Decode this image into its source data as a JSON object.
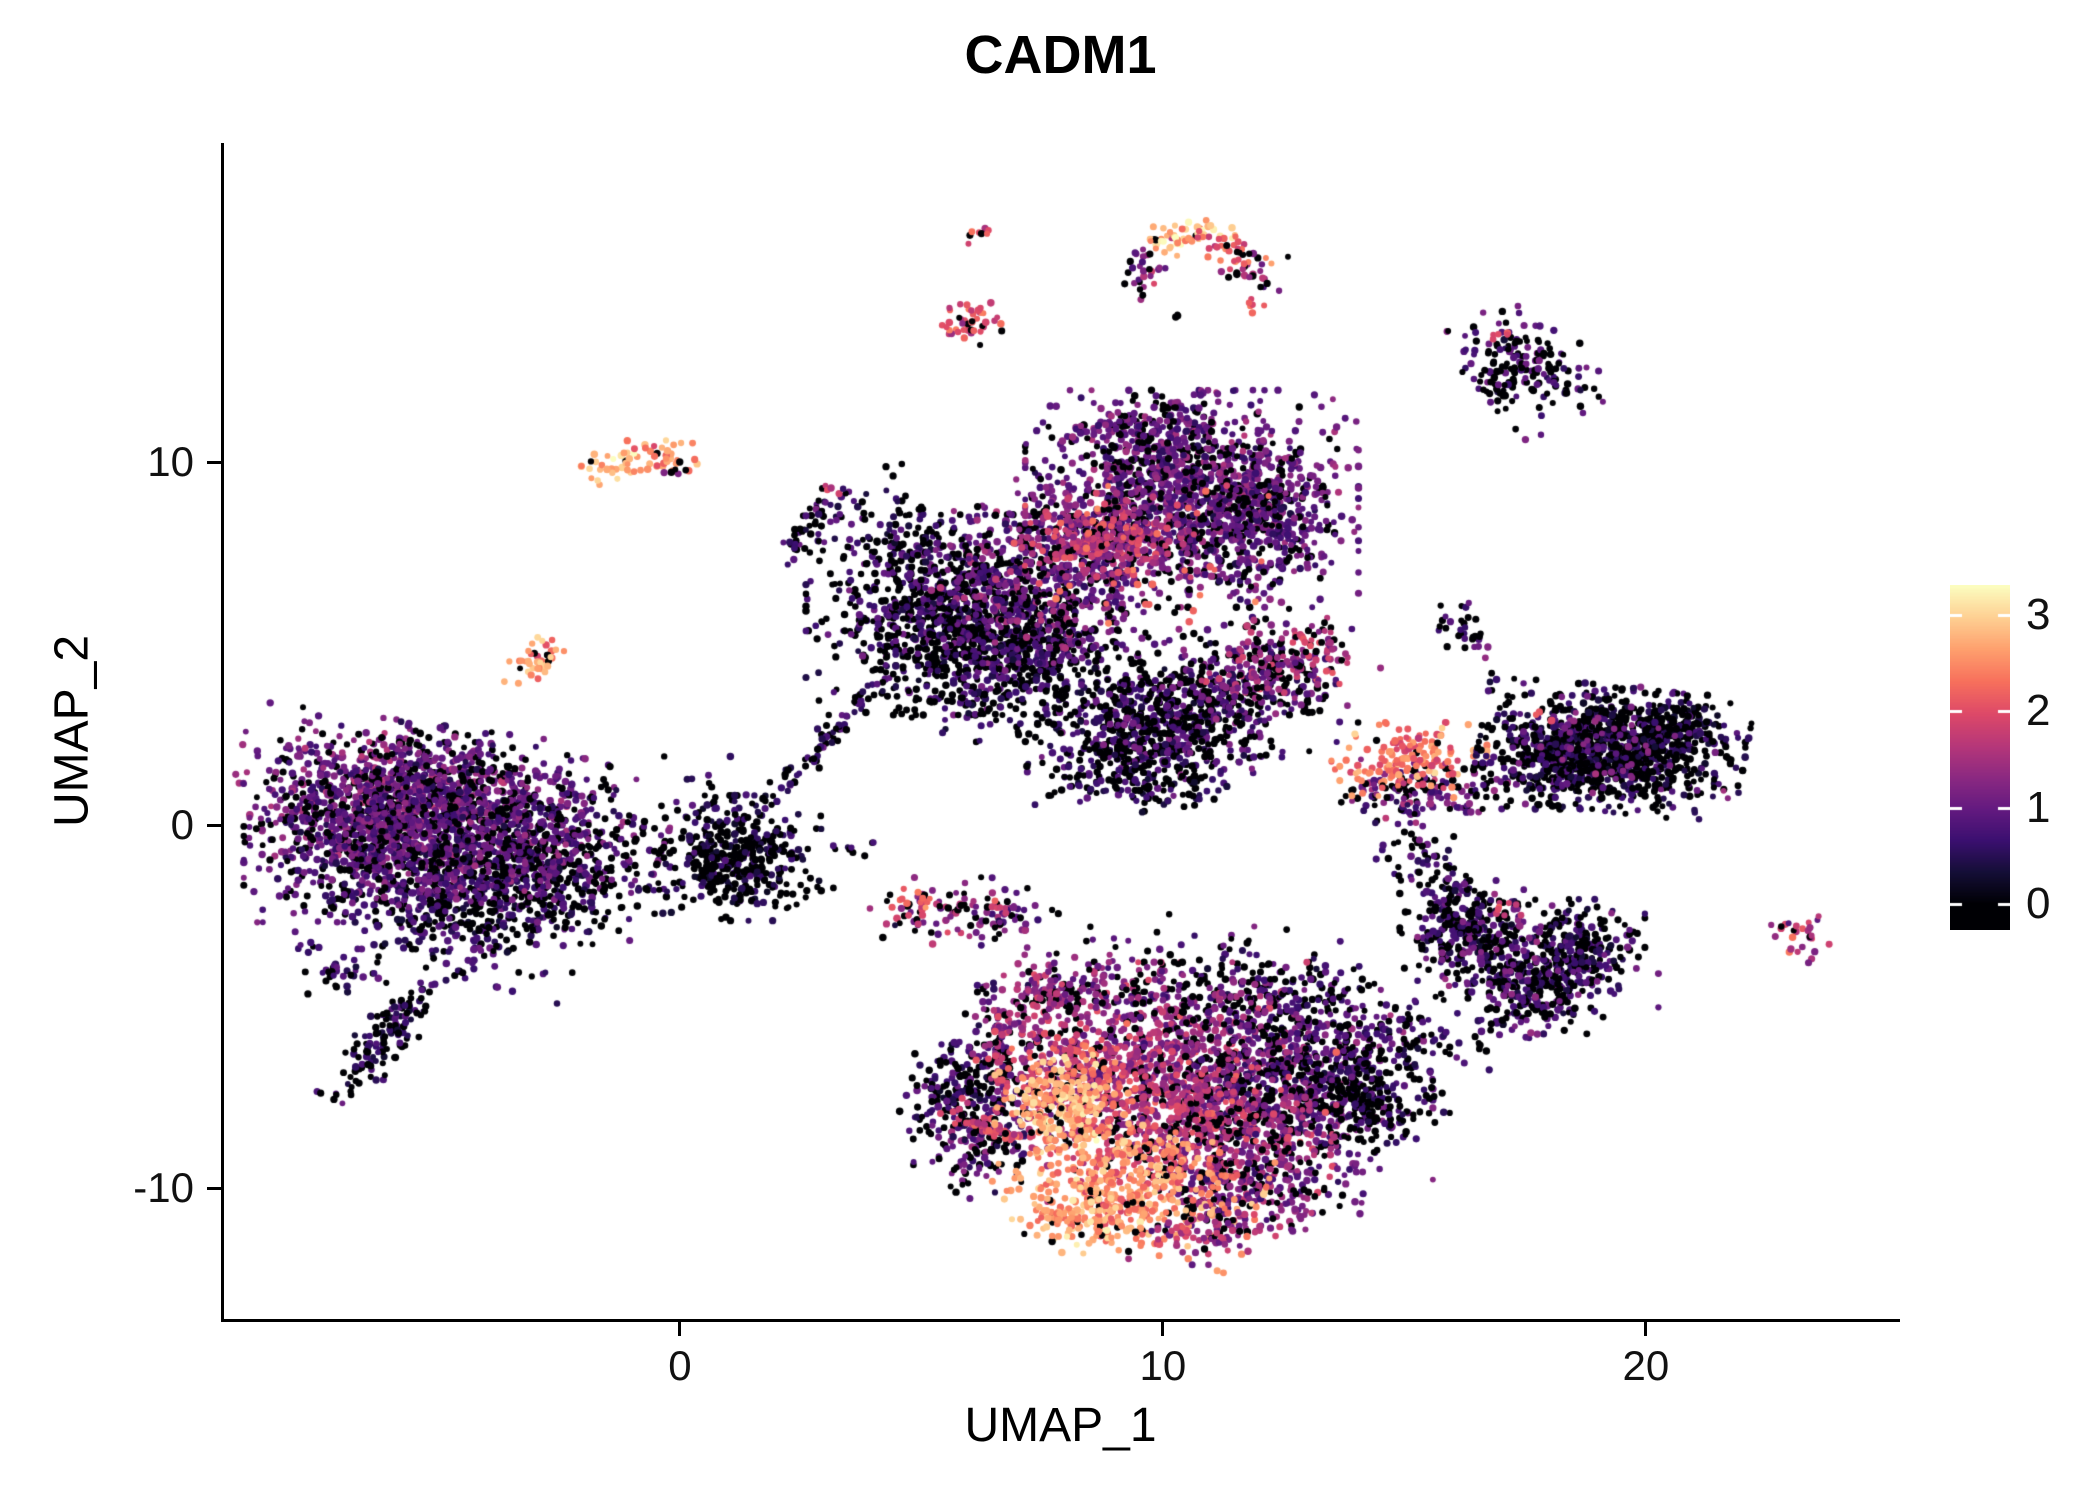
{
  "chart_data": {
    "type": "scatter",
    "title": "CADM1",
    "xlabel": "UMAP_1",
    "ylabel": "UMAP_2",
    "xlim": [
      -9.44,
      25.2
    ],
    "ylim": [
      -13.6,
      18.8
    ],
    "x_ticks": [
      0,
      10,
      20
    ],
    "y_ticks": [
      -10,
      0,
      10
    ],
    "grid": false,
    "background": "#ffffff",
    "point_radius_px": 3.3,
    "legend": {
      "position": "right",
      "type": "colorbar",
      "ticks": [
        0,
        1,
        2,
        3
      ],
      "bar_vmin": -0.26,
      "bar_vmax": 3.31,
      "value_max": 3.3
    },
    "colorscale": {
      "name": "magma",
      "stops": [
        [
          0.0,
          "#000004"
        ],
        [
          0.1,
          "#140e36"
        ],
        [
          0.2,
          "#3b0f70"
        ],
        [
          0.3,
          "#641a80"
        ],
        [
          0.4,
          "#8c2981"
        ],
        [
          0.5,
          "#b73779"
        ],
        [
          0.6,
          "#de4968"
        ],
        [
          0.7,
          "#f7705c"
        ],
        [
          0.8,
          "#fe9f6d"
        ],
        [
          0.9,
          "#fecf92"
        ],
        [
          1.0,
          "#fcfdbf"
        ]
      ]
    },
    "cluster_fields": [
      "cx",
      "cy",
      "sigma_x",
      "sigma_y",
      "rot_deg",
      "n",
      "zero_frac",
      "vmin",
      "vmax"
    ],
    "clusters": [
      [
        -4.6,
        -2.2,
        1.3,
        0.8,
        -20,
        450,
        0.45,
        0.2,
        1.2
      ],
      [
        -3.0,
        -1.2,
        0.9,
        0.8,
        0,
        300,
        0.5,
        0.2,
        1.2
      ],
      [
        -5.8,
        0.8,
        1.5,
        0.9,
        -10,
        900,
        0.25,
        0.4,
        1.8
      ],
      [
        -4.0,
        0.0,
        1.6,
        1.0,
        -15,
        900,
        0.3,
        0.3,
        1.6
      ],
      [
        -6.5,
        -0.6,
        1.1,
        0.9,
        0,
        500,
        0.3,
        0.3,
        1.5
      ],
      [
        -6.0,
        -5.7,
        0.95,
        0.25,
        58,
        140,
        0.55,
        0.2,
        1.1
      ],
      [
        -6.9,
        -4.1,
        0.4,
        0.3,
        0,
        35,
        0.5,
        0.2,
        1.2
      ],
      [
        -7.6,
        -3.4,
        0.15,
        0.1,
        0,
        6,
        0.5,
        0.3,
        1.0
      ],
      [
        -0.9,
        -1.3,
        0.5,
        0.4,
        0,
        25,
        0.5,
        0.3,
        1.2
      ],
      [
        -2.9,
        4.6,
        0.22,
        0.4,
        -30,
        40,
        0.08,
        1.8,
        3.3
      ],
      [
        -1.35,
        9.85,
        0.3,
        0.22,
        0,
        30,
        0.05,
        2.3,
        3.4
      ],
      [
        -0.45,
        10.2,
        0.35,
        0.25,
        0,
        35,
        0.1,
        1.8,
        3.2
      ],
      [
        -0.15,
        9.8,
        0.2,
        0.15,
        0,
        6,
        0.7,
        0.5,
        1.5
      ],
      [
        2.65,
        8.15,
        0.55,
        0.15,
        65,
        45,
        0.5,
        0.3,
        1.3
      ],
      [
        3.05,
        9.25,
        0.12,
        0.1,
        0,
        5,
        0.1,
        1.5,
        2.2
      ],
      [
        1.2,
        -0.9,
        0.75,
        0.75,
        0,
        380,
        0.72,
        0.15,
        0.9
      ],
      [
        0.9,
        -0.4,
        1.2,
        1.0,
        0,
        60,
        0.6,
        0.2,
        1.0
      ],
      [
        3.15,
        2.5,
        1.0,
        0.12,
        57,
        70,
        0.5,
        0.2,
        1.2
      ],
      [
        3.4,
        -0.6,
        0.3,
        0.25,
        0,
        8,
        0.6,
        0.3,
        1.0
      ],
      [
        2.2,
        -2.2,
        0.2,
        0.15,
        0,
        5,
        0.5,
        0.3,
        1.0
      ],
      [
        5.6,
        5.8,
        1.3,
        1.2,
        0,
        800,
        0.55,
        0.2,
        1.2
      ],
      [
        7.0,
        4.9,
        1.1,
        0.8,
        0,
        450,
        0.5,
        0.2,
        1.3
      ],
      [
        4.6,
        7.8,
        0.5,
        0.9,
        20,
        120,
        0.5,
        0.2,
        1.2
      ],
      [
        6.3,
        3.4,
        1.5,
        0.5,
        0,
        100,
        0.6,
        0.2,
        1.0
      ],
      [
        7.8,
        7.0,
        1.2,
        1.1,
        0,
        600,
        0.3,
        0.4,
        1.8
      ],
      [
        10.6,
        9.0,
        1.5,
        1.3,
        0,
        1300,
        0.22,
        0.4,
        1.7
      ],
      [
        12.0,
        8.3,
        0.7,
        0.9,
        0,
        250,
        0.3,
        0.3,
        1.5
      ],
      [
        9.6,
        10.8,
        0.8,
        0.5,
        0,
        150,
        0.3,
        0.4,
        1.6
      ],
      [
        8.8,
        8.0,
        0.8,
        0.5,
        0,
        250,
        0.12,
        1.0,
        2.4
      ],
      [
        9.5,
        7.5,
        1.5,
        1.2,
        0,
        40,
        0.0,
        1.8,
        2.6
      ],
      [
        5.95,
        13.9,
        0.35,
        0.3,
        0,
        45,
        0.15,
        1.2,
        2.6
      ],
      [
        6.2,
        16.3,
        0.18,
        0.12,
        0,
        8,
        0.2,
        1.5,
        2.5
      ],
      [
        9.6,
        15.3,
        0.25,
        0.45,
        -20,
        30,
        0.3,
        0.5,
        2.0
      ],
      [
        11.9,
        15.2,
        0.3,
        0.25,
        0,
        25,
        0.4,
        0.5,
        2.0
      ],
      [
        11.9,
        14.35,
        0.15,
        0.1,
        0,
        6,
        0.0,
        1.8,
        2.4
      ],
      [
        10.3,
        13.95,
        0.1,
        0.1,
        0,
        4,
        0.7,
        0.3,
        1.0
      ],
      [
        10.4,
        16.2,
        0.55,
        0.2,
        15,
        45,
        0.05,
        2.2,
        3.4
      ],
      [
        11.3,
        15.9,
        0.45,
        0.18,
        -25,
        35,
        0.1,
        1.5,
        2.8
      ],
      [
        17.6,
        12.7,
        0.55,
        0.75,
        35,
        160,
        0.5,
        0.3,
        1.4
      ],
      [
        16.9,
        12.1,
        0.2,
        0.3,
        0,
        25,
        0.55,
        0.3,
        1.2
      ],
      [
        17.0,
        13.5,
        0.15,
        0.1,
        0,
        5,
        0.0,
        1.8,
        2.2
      ],
      [
        15.2,
        -0.6,
        0.5,
        0.45,
        0,
        30,
        0.6,
        0.3,
        1.2
      ],
      [
        15.3,
        0.9,
        0.8,
        0.4,
        0,
        140,
        0.35,
        0.4,
        1.8
      ],
      [
        15.1,
        1.8,
        0.7,
        0.45,
        0,
        160,
        0.1,
        1.5,
        3.1
      ],
      [
        19.3,
        2.1,
        1.2,
        0.75,
        -8,
        900,
        0.62,
        0.15,
        1.0
      ],
      [
        18.0,
        1.6,
        0.6,
        0.5,
        0,
        200,
        0.6,
        0.2,
        1.1
      ],
      [
        20.6,
        2.6,
        0.5,
        0.45,
        0,
        150,
        0.6,
        0.2,
        1.0
      ],
      [
        19.3,
        2.2,
        1.1,
        0.7,
        0,
        60,
        0.0,
        0.8,
        1.6
      ],
      [
        17.9,
        3.0,
        0.12,
        0.1,
        0,
        4,
        0.0,
        1.8,
        2.2
      ],
      [
        16.1,
        5.6,
        0.25,
        0.4,
        0,
        30,
        0.55,
        0.3,
        1.2
      ],
      [
        16.6,
        4.8,
        0.1,
        0.08,
        0,
        3,
        0.0,
        1.0,
        1.5
      ],
      [
        5.2,
        -2.35,
        0.55,
        0.4,
        0,
        70,
        0.35,
        0.3,
        2.2
      ],
      [
        5.0,
        -2.2,
        0.3,
        0.2,
        0,
        12,
        0.0,
        1.8,
        2.8
      ],
      [
        6.8,
        -2.5,
        0.45,
        0.35,
        0,
        55,
        0.4,
        0.3,
        1.8
      ],
      [
        6.6,
        -2.2,
        0.12,
        0.1,
        0,
        5,
        0.0,
        1.6,
        2.2
      ],
      [
        7.6,
        -4.6,
        0.25,
        0.18,
        0,
        14,
        0.6,
        0.2,
        0.9
      ],
      [
        6.3,
        -4.4,
        0.15,
        0.12,
        0,
        6,
        0.5,
        0.3,
        1.0
      ],
      [
        9.4,
        2.2,
        1.0,
        0.8,
        10,
        420,
        0.55,
        0.2,
        1.2
      ],
      [
        10.9,
        3.3,
        1.2,
        0.85,
        20,
        500,
        0.5,
        0.2,
        1.4
      ],
      [
        9.9,
        1.1,
        0.8,
        0.3,
        0,
        60,
        0.6,
        0.2,
        1.0
      ],
      [
        12.4,
        4.5,
        0.8,
        0.55,
        25,
        220,
        0.25,
        0.6,
        2.2
      ],
      [
        12.9,
        5.1,
        0.15,
        0.1,
        0,
        6,
        0.0,
        1.5,
        2.2
      ],
      [
        5.7,
        -7.3,
        0.5,
        0.55,
        0,
        130,
        0.55,
        0.2,
        1.2
      ],
      [
        6.6,
        -6.7,
        0.4,
        0.8,
        0,
        100,
        0.5,
        0.3,
        1.3
      ],
      [
        6.2,
        -8.8,
        0.55,
        0.6,
        -30,
        150,
        0.4,
        0.3,
        1.6
      ],
      [
        12.3,
        -4.7,
        1.0,
        0.5,
        0,
        150,
        0.5,
        0.2,
        1.2
      ],
      [
        10.5,
        -3.6,
        1.5,
        0.5,
        0,
        50,
        0.5,
        0.3,
        1.5
      ],
      [
        9.8,
        -6.3,
        1.4,
        1.1,
        0,
        700,
        0.18,
        0.7,
        2.2
      ],
      [
        12.6,
        -7.0,
        1.3,
        1.2,
        0,
        700,
        0.3,
        0.4,
        1.6
      ],
      [
        14.1,
        -7.3,
        0.8,
        0.8,
        0,
        300,
        0.55,
        0.2,
        1.1
      ],
      [
        10.6,
        -8.3,
        1.3,
        0.9,
        0,
        600,
        0.2,
        0.9,
        2.3
      ],
      [
        12.0,
        -9.9,
        0.9,
        0.6,
        10,
        250,
        0.3,
        0.5,
        1.8
      ],
      [
        8.8,
        -4.6,
        1.0,
        0.45,
        0,
        150,
        0.3,
        0.5,
        2.0
      ],
      [
        7.3,
        -5.3,
        0.5,
        0.8,
        -15,
        130,
        0.25,
        0.8,
        2.2
      ],
      [
        6.4,
        -8.3,
        0.5,
        0.2,
        -35,
        60,
        0.1,
        1.3,
        2.4
      ],
      [
        8.1,
        -7.3,
        0.9,
        0.8,
        0,
        180,
        0.1,
        1.5,
        2.6
      ],
      [
        7.9,
        -7.7,
        0.6,
        0.6,
        0,
        220,
        0.05,
        2.2,
        3.4
      ],
      [
        9.3,
        -9.9,
        1.2,
        0.8,
        -15,
        450,
        0.08,
        1.8,
        3.2
      ],
      [
        8.4,
        -10.9,
        0.6,
        0.4,
        0,
        120,
        0.1,
        2.0,
        3.3
      ],
      [
        10.9,
        -11.3,
        0.7,
        0.35,
        0,
        90,
        0.25,
        0.8,
        2.2
      ],
      [
        16.4,
        -2.9,
        0.65,
        0.6,
        0,
        250,
        0.55,
        0.2,
        1.2
      ],
      [
        15.8,
        -1.7,
        0.25,
        0.6,
        15,
        60,
        0.5,
        0.3,
        1.2
      ],
      [
        17.6,
        -4.4,
        0.75,
        0.6,
        -20,
        280,
        0.5,
        0.2,
        1.3
      ],
      [
        18.6,
        -3.3,
        0.6,
        0.55,
        0,
        220,
        0.55,
        0.2,
        1.2
      ],
      [
        15.3,
        -5.6,
        0.9,
        0.4,
        -20,
        60,
        0.5,
        0.3,
        1.2
      ],
      [
        17.5,
        -3.7,
        1.2,
        0.9,
        0,
        60,
        0.0,
        0.8,
        1.5
      ],
      [
        17.0,
        -2.4,
        0.3,
        0.2,
        0,
        8,
        0.0,
        1.5,
        2.3
      ],
      [
        23.2,
        -3.1,
        0.3,
        0.35,
        0,
        28,
        0.25,
        0.6,
        2.6
      ]
    ]
  }
}
